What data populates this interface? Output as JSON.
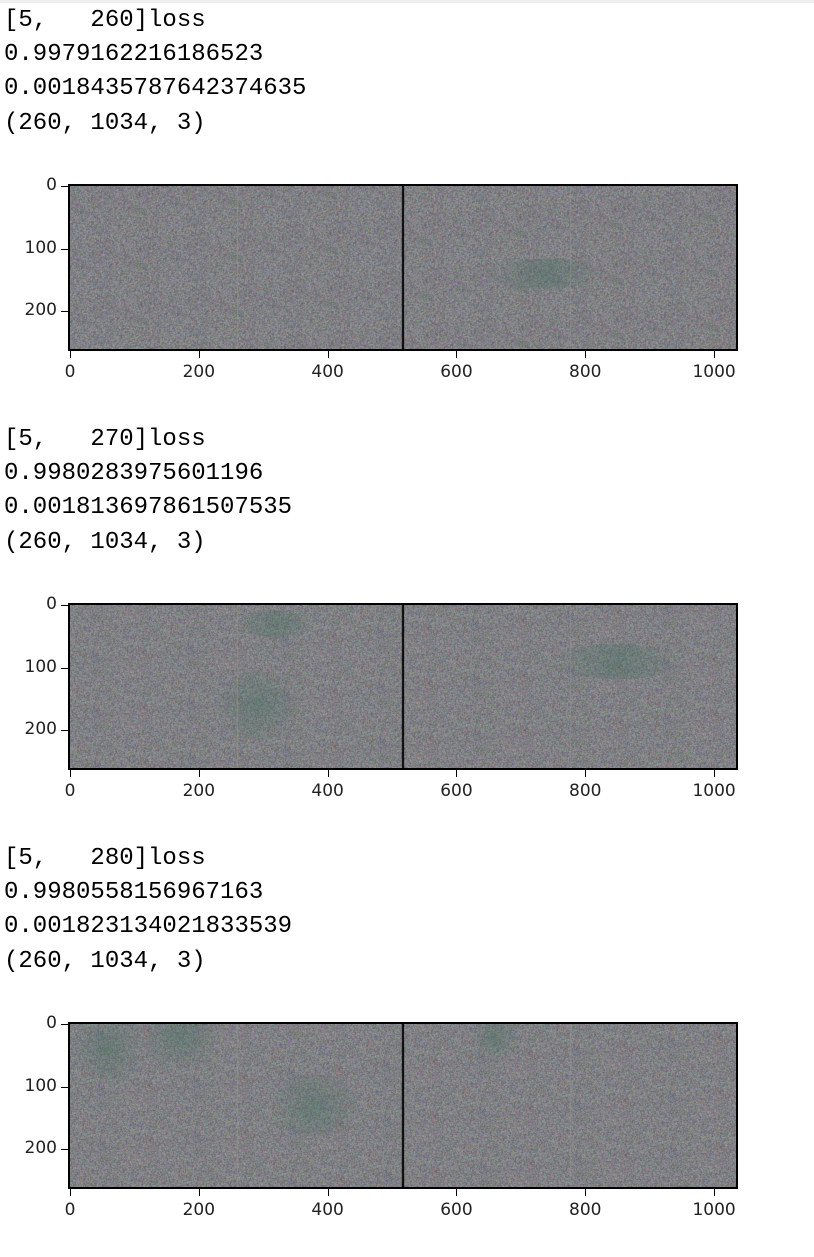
{
  "cells": [
    {
      "lines": [
        "[5,   260]loss",
        "0.9979162216186523",
        "0.0018435787642374635",
        "(260, 1034, 3)"
      ],
      "plot": {
        "y_ticks": [
          "0",
          "100",
          "200"
        ],
        "x_ticks": [
          "0",
          "200",
          "400",
          "600",
          "800",
          "1000"
        ]
      },
      "blobs": [
        [
          737,
          140,
          90,
          24
        ]
      ]
    },
    {
      "lines": [
        "[5,   270]loss",
        "0.9980283975601196",
        "0.001813697861507535",
        "(260, 1034, 3)"
      ],
      "plot": {
        "y_ticks": [
          "0",
          "100",
          "200"
        ],
        "x_ticks": [
          "0",
          "200",
          "400",
          "600",
          "800",
          "1000"
        ]
      },
      "blobs": [
        [
          318,
          30,
          60,
          22
        ],
        [
          290,
          160,
          70,
          55
        ],
        [
          850,
          90,
          100,
          28
        ]
      ]
    },
    {
      "lines": [
        "[5,   280]loss",
        "0.9980558156967163",
        "0.001823134021833539",
        "(260, 1034, 3)"
      ],
      "plot": {
        "y_ticks": [
          "0",
          "100",
          "200"
        ],
        "x_ticks": [
          "0",
          "200",
          "400",
          "600",
          "800",
          "1000"
        ]
      },
      "blobs": [
        [
          60,
          40,
          60,
          60
        ],
        [
          170,
          20,
          60,
          50
        ],
        [
          380,
          130,
          70,
          50
        ],
        [
          660,
          20,
          40,
          40
        ]
      ]
    }
  ],
  "image_shape": {
    "height": 260,
    "width": 1034
  },
  "colors": {
    "background": "#ffffff",
    "image_gray": "#888a8a",
    "text": "#000000"
  }
}
